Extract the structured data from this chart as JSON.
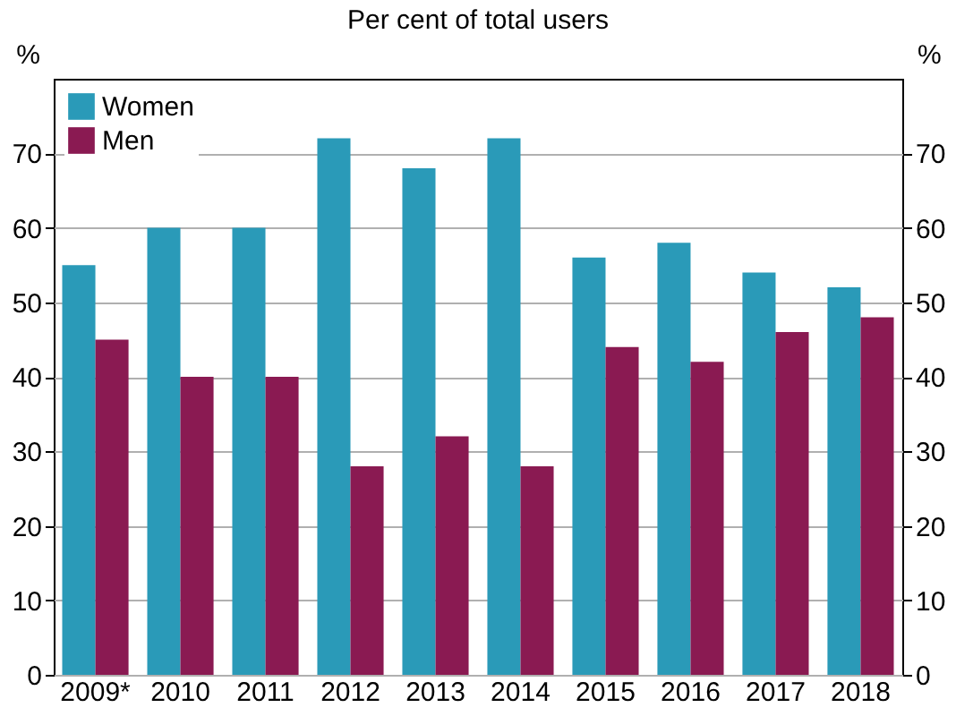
{
  "chart_data": {
    "type": "bar",
    "title": "Per cent of total users",
    "ylabel": "%",
    "y2label": "%",
    "categories": [
      "2009*",
      "2010",
      "2011",
      "2012",
      "2013",
      "2014",
      "2015",
      "2016",
      "2017",
      "2018"
    ],
    "series": [
      {
        "name": "Women",
        "color": "#2a9ab8",
        "values": [
          55,
          60,
          60,
          72,
          68,
          72,
          56,
          58,
          54,
          52
        ]
      },
      {
        "name": "Men",
        "color": "#8a1a52",
        "values": [
          45,
          40,
          40,
          28,
          32,
          28,
          44,
          42,
          46,
          48
        ]
      }
    ],
    "ylim": [
      0,
      80
    ],
    "yticks": [
      0,
      10,
      20,
      30,
      40,
      50,
      60,
      70
    ],
    "y2lim": [
      0,
      80
    ],
    "y2ticks": [
      0,
      10,
      20,
      30,
      40,
      50,
      60,
      70
    ],
    "grid": "y",
    "legend": "top left"
  }
}
